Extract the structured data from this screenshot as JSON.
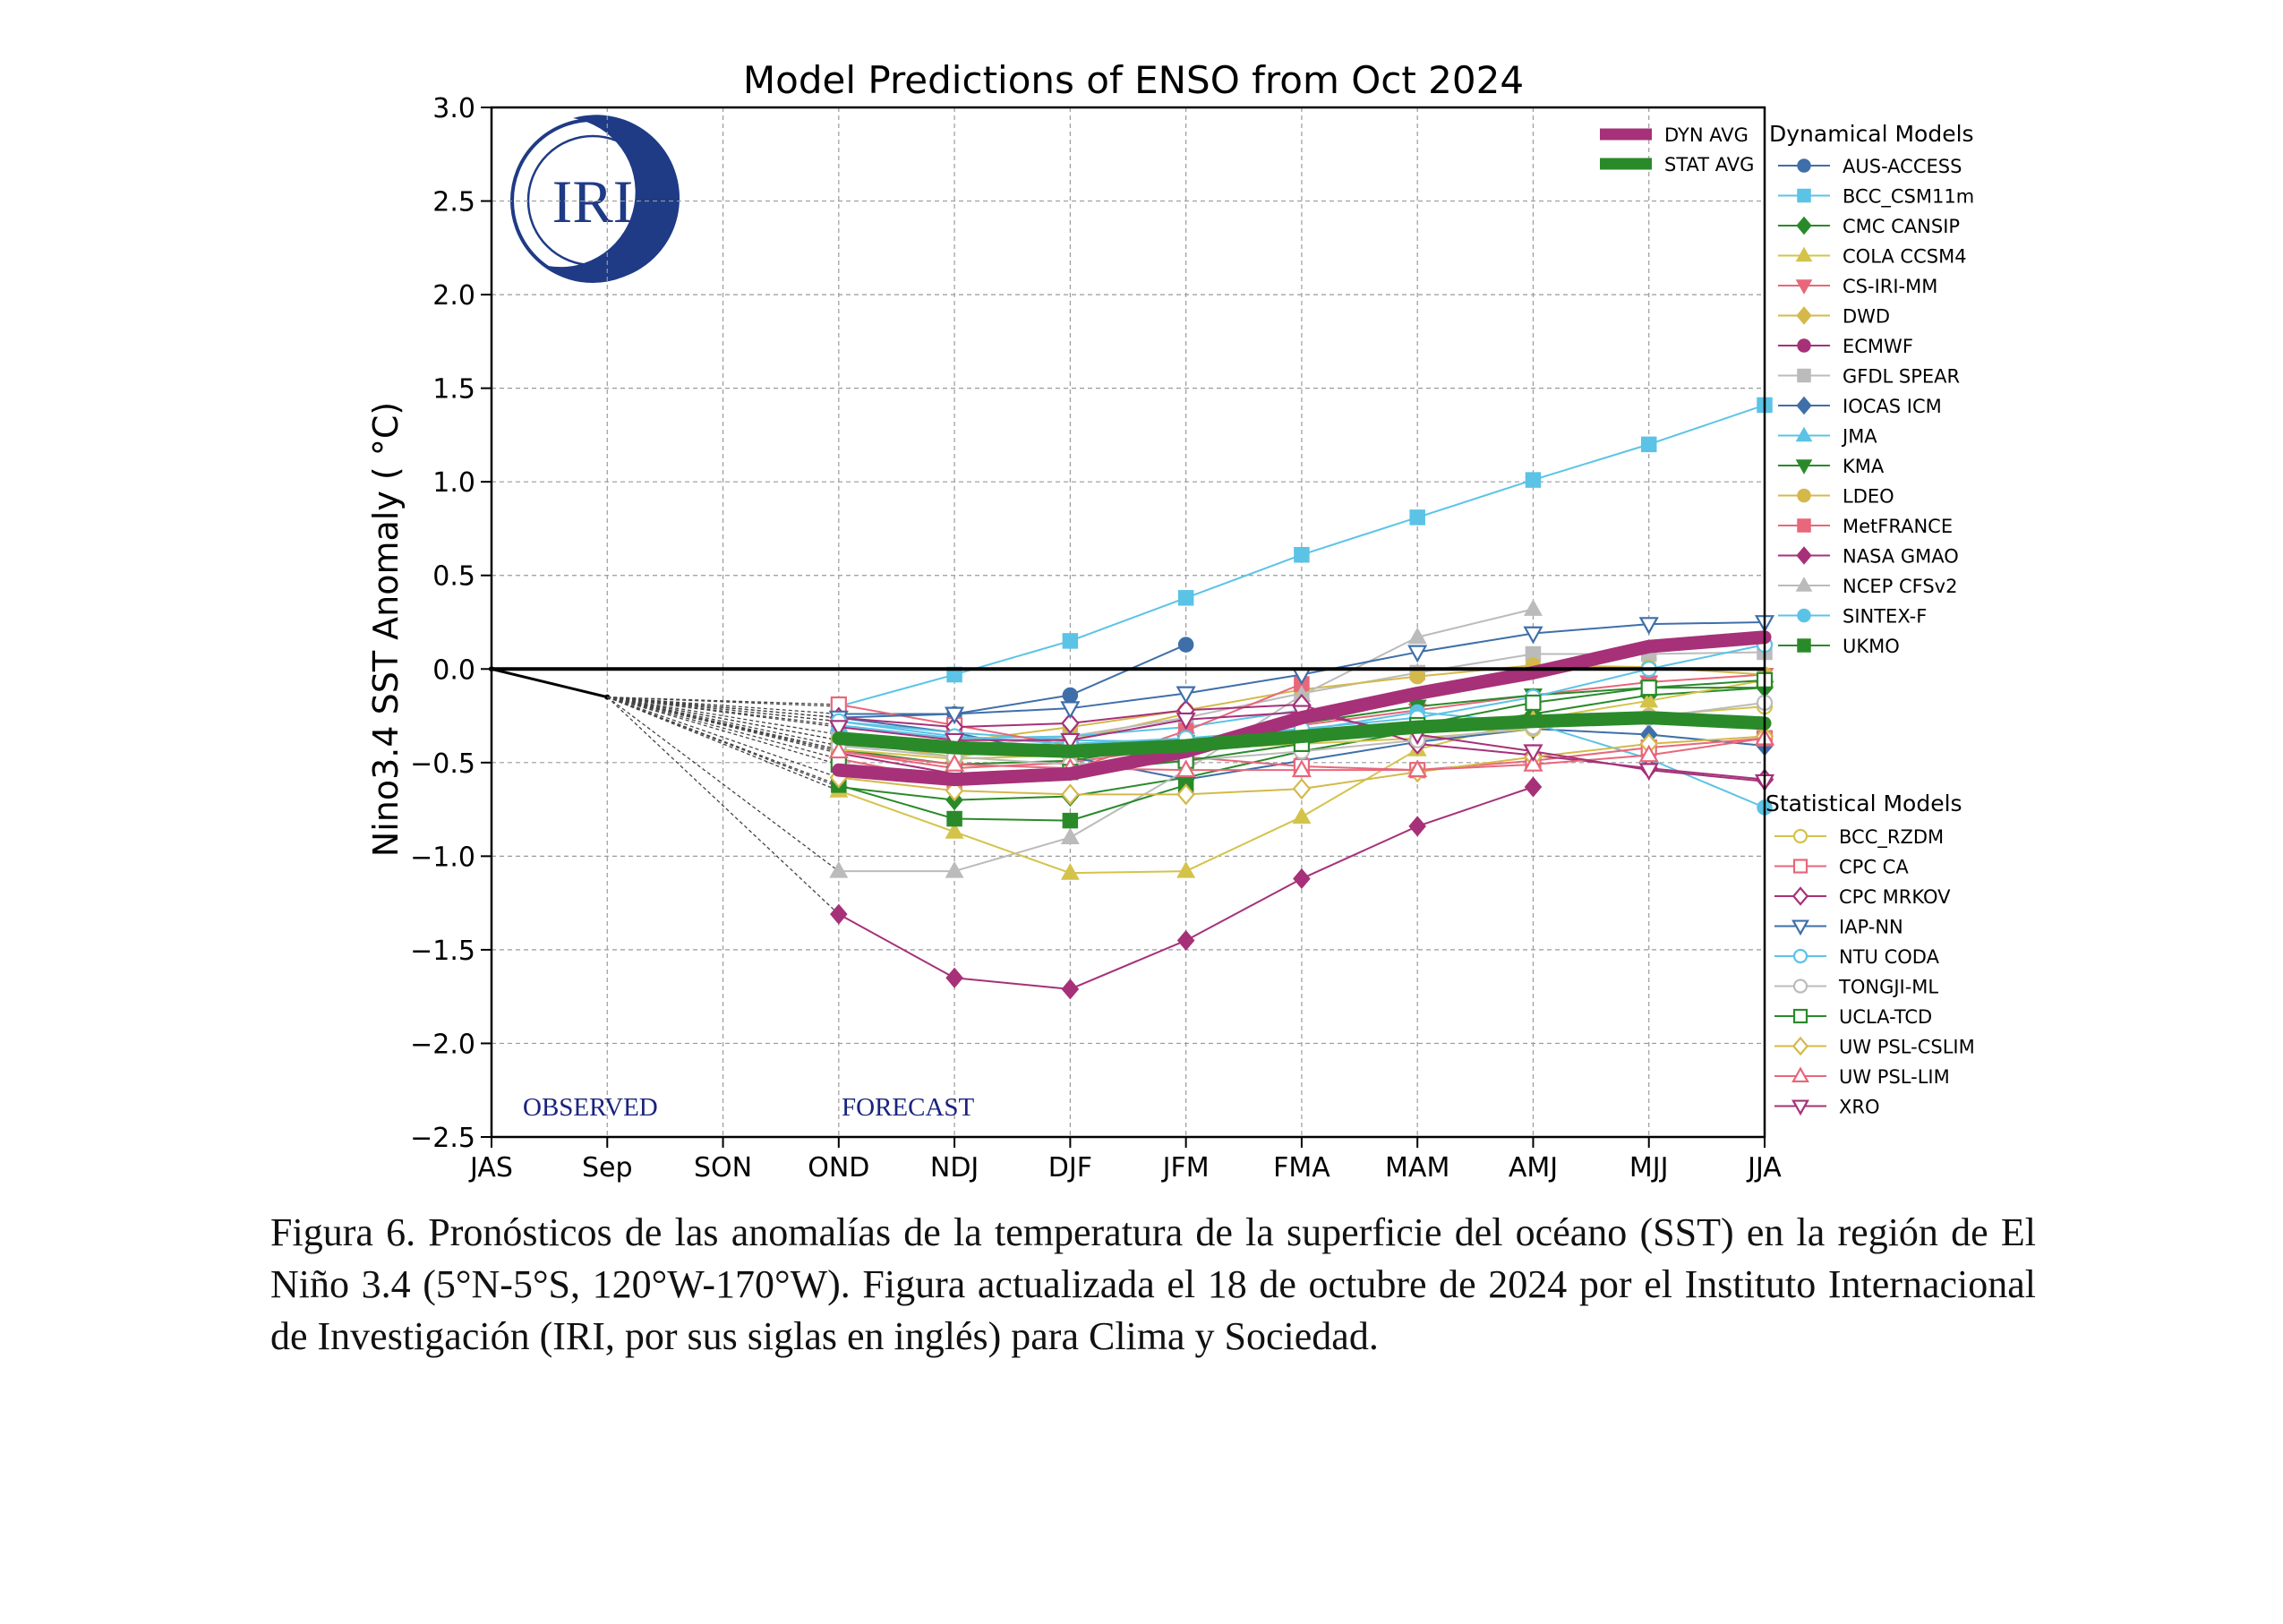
{
  "caption": "Figura 6. Pronósticos de las anomalías de la temperatura de la superficie del océano (SST) en la región de El Niño 3.4 (5°N-5°S, 120°W-170°W). Figura actualizada el 18 de octubre de 2024 por el Instituto Internacional de Investigación (IRI, por sus siglas en inglés) para Clima y Sociedad.",
  "logo_text": "IRI",
  "chart_data": {
    "type": "line",
    "title": "Model Predictions of ENSO from Oct 2024",
    "ylabel": "Nino3.4 SST Anomaly ( °C)",
    "xlabel": "",
    "categories": [
      "JAS",
      "Sep",
      "SON",
      "OND",
      "NDJ",
      "DJF",
      "JFM",
      "FMA",
      "MAM",
      "AMJ",
      "MJJ",
      "JJA"
    ],
    "ylim": [
      -2.5,
      3.0
    ],
    "yticks": [
      3.0,
      2.5,
      2.0,
      1.5,
      1.0,
      0.5,
      0.0,
      -0.5,
      -1.0,
      -1.5,
      -2.0,
      -2.5
    ],
    "ytick_labels": [
      "3.0",
      "2.5",
      "2.0",
      "1.5",
      "1.0",
      "0.5",
      "0.0",
      "−0.5",
      "−1.0",
      "−1.5",
      "−2.0",
      "−2.5"
    ],
    "grid": true,
    "annotations": [
      "OBSERVED",
      "FORECAST"
    ],
    "observed": {
      "JAS": 0.0,
      "Sep": -0.15
    },
    "zero_line": 0.0,
    "legend_groups": [
      {
        "title": "",
        "placement": "top-right inside",
        "keys": [
          "DYN AVG",
          "STAT AVG"
        ]
      },
      {
        "title": "Dynamical Models",
        "placement": "right outside top"
      },
      {
        "title": "Statistical Models",
        "placement": "right outside bottom"
      }
    ],
    "series": [
      {
        "name": "DYN AVG",
        "group": "avg",
        "color": "#a63178",
        "marker": "none",
        "values": [
          null,
          null,
          null,
          -0.54,
          -0.59,
          -0.56,
          -0.44,
          -0.26,
          -0.13,
          -0.02,
          0.12,
          0.17
        ]
      },
      {
        "name": "STAT AVG",
        "group": "avg",
        "color": "#2a8a2a",
        "marker": "none",
        "values": [
          null,
          null,
          null,
          -0.37,
          -0.42,
          -0.44,
          -0.41,
          -0.36,
          -0.31,
          -0.28,
          -0.26,
          -0.29
        ]
      },
      {
        "name": "AUS-ACCESS",
        "group": "Dynamical Models",
        "color": "#3f6fa9",
        "marker": "circle",
        "filled": true,
        "values": [
          null,
          null,
          null,
          -0.24,
          -0.24,
          -0.14,
          0.13,
          null,
          null,
          null,
          null,
          null
        ]
      },
      {
        "name": "BCC_CSM11m",
        "group": "Dynamical Models",
        "color": "#5bc3e6",
        "marker": "square",
        "filled": true,
        "values": [
          null,
          null,
          null,
          -0.2,
          -0.03,
          0.15,
          0.38,
          0.61,
          0.81,
          1.01,
          1.2,
          1.41
        ]
      },
      {
        "name": "CMC CANSIP",
        "group": "Dynamical Models",
        "color": "#2a8a2a",
        "marker": "diamond",
        "filled": true,
        "values": [
          null,
          null,
          null,
          -0.63,
          -0.7,
          -0.68,
          -0.58,
          -0.44,
          -0.33,
          -0.24,
          -0.14,
          -0.1
        ]
      },
      {
        "name": "COLA CCSM4",
        "group": "Dynamical Models",
        "color": "#d4c34a",
        "marker": "triangle-up",
        "filled": true,
        "values": [
          null,
          null,
          null,
          -0.65,
          -0.87,
          -1.09,
          -1.08,
          -0.79,
          -0.43,
          -0.27,
          -0.17,
          -0.06
        ]
      },
      {
        "name": "CS-IRI-MM",
        "group": "Dynamical Models",
        "color": "#e8677a",
        "marker": "triangle-down",
        "filled": true,
        "values": [
          null,
          null,
          null,
          -0.44,
          -0.53,
          -0.5,
          -0.41,
          -0.3,
          -0.22,
          -0.14,
          -0.07,
          -0.03
        ]
      },
      {
        "name": "DWD",
        "group": "Dynamical Models",
        "color": "#d4b94a",
        "marker": "diamond",
        "filled": true,
        "values": [
          null,
          null,
          null,
          -0.38,
          -0.47,
          -0.38,
          -0.24,
          null,
          null,
          null,
          null,
          null
        ]
      },
      {
        "name": "ECMWF",
        "group": "Dynamical Models",
        "color": "#a63178",
        "marker": "circle",
        "filled": true,
        "values": [
          null,
          null,
          null,
          -0.45,
          -0.56,
          -0.53,
          -0.43,
          null,
          null,
          null,
          null,
          null
        ]
      },
      {
        "name": "GFDL SPEAR",
        "group": "Dynamical Models",
        "color": "#bbbbbb",
        "marker": "square",
        "filled": true,
        "values": [
          null,
          null,
          null,
          -0.35,
          -0.42,
          -0.36,
          -0.26,
          -0.13,
          -0.02,
          0.08,
          0.08,
          0.09
        ]
      },
      {
        "name": "IOCAS ICM",
        "group": "Dynamical Models",
        "color": "#3f6fa9",
        "marker": "diamond",
        "filled": true,
        "values": [
          null,
          null,
          null,
          -0.26,
          -0.34,
          -0.47,
          -0.59,
          -0.49,
          -0.39,
          -0.32,
          -0.35,
          -0.41
        ]
      },
      {
        "name": "JMA",
        "group": "Dynamical Models",
        "color": "#5bc3e6",
        "marker": "triangle-up",
        "filled": true,
        "values": [
          null,
          null,
          null,
          -0.3,
          -0.37,
          -0.36,
          -0.31,
          -0.22,
          null,
          null,
          null,
          null
        ]
      },
      {
        "name": "KMA",
        "group": "Dynamical Models",
        "color": "#2a8a2a",
        "marker": "triangle-down",
        "filled": true,
        "values": [
          null,
          null,
          null,
          -0.43,
          -0.51,
          -0.49,
          -0.39,
          -0.29,
          -0.2,
          -0.14,
          -0.1,
          -0.1
        ]
      },
      {
        "name": "LDEO",
        "group": "Dynamical Models",
        "color": "#d4b94a",
        "marker": "circle",
        "filled": true,
        "values": [
          null,
          null,
          null,
          -0.38,
          -0.39,
          -0.31,
          -0.22,
          -0.11,
          -0.04,
          0.02,
          0.01,
          -0.03
        ]
      },
      {
        "name": "MetFRANCE",
        "group": "Dynamical Models",
        "color": "#e8677a",
        "marker": "square",
        "filled": true,
        "values": [
          null,
          null,
          null,
          -0.48,
          -0.6,
          -0.54,
          -0.33,
          -0.08,
          null,
          null,
          null,
          null
        ]
      },
      {
        "name": "NASA GMAO",
        "group": "Dynamical Models",
        "color": "#a63178",
        "marker": "diamond",
        "filled": true,
        "values": [
          null,
          null,
          null,
          -1.31,
          -1.65,
          -1.71,
          -1.45,
          -1.12,
          -0.84,
          -0.63,
          null,
          null
        ]
      },
      {
        "name": "NCEP CFSv2",
        "group": "Dynamical Models",
        "color": "#bbbbbb",
        "marker": "triangle-up",
        "filled": true,
        "values": [
          null,
          null,
          null,
          -1.08,
          -1.08,
          -0.9,
          -0.54,
          -0.14,
          0.17,
          0.32,
          null,
          null
        ]
      },
      {
        "name": "SINTEX-F",
        "group": "Dynamical Models",
        "color": "#5bc3e6",
        "marker": "circle",
        "filled": true,
        "values": [
          null,
          null,
          null,
          -0.28,
          -0.34,
          -0.38,
          -0.39,
          -0.33,
          -0.23,
          -0.29,
          -0.48,
          -0.74
        ]
      },
      {
        "name": "UKMO",
        "group": "Dynamical Models",
        "color": "#2a8a2a",
        "marker": "square",
        "filled": true,
        "values": [
          null,
          null,
          null,
          -0.62,
          -0.8,
          -0.81,
          -0.62,
          null,
          null,
          null,
          null,
          null
        ]
      },
      {
        "name": "BCC_RZDM",
        "group": "Statistical Models",
        "color": "#d4c34a",
        "marker": "circle",
        "filled": false,
        "values": [
          null,
          null,
          null,
          -0.43,
          -0.48,
          -0.46,
          -0.43,
          -0.4,
          -0.37,
          -0.32,
          -0.25,
          -0.2
        ]
      },
      {
        "name": "CPC CA",
        "group": "Statistical Models",
        "color": "#e8677a",
        "marker": "square",
        "filled": false,
        "values": [
          null,
          null,
          null,
          -0.19,
          -0.3,
          -0.41,
          -0.47,
          -0.52,
          -0.54,
          -0.49,
          -0.42,
          -0.37
        ]
      },
      {
        "name": "CPC MRKOV",
        "group": "Statistical Models",
        "color": "#a63178",
        "marker": "diamond",
        "filled": false,
        "values": [
          null,
          null,
          null,
          -0.26,
          -0.31,
          -0.29,
          -0.22,
          -0.19,
          -0.4,
          -0.46,
          -0.53,
          -0.59
        ]
      },
      {
        "name": "IAP-NN",
        "group": "Statistical Models",
        "color": "#3f6fa9",
        "marker": "triangle-down",
        "filled": false,
        "values": [
          null,
          null,
          null,
          -0.26,
          -0.24,
          -0.21,
          -0.13,
          -0.03,
          0.09,
          0.19,
          0.24,
          0.25
        ]
      },
      {
        "name": "NTU CODA",
        "group": "Statistical Models",
        "color": "#5bc3e6",
        "marker": "circle",
        "filled": false,
        "values": [
          null,
          null,
          null,
          -0.28,
          -0.36,
          -0.4,
          -0.37,
          -0.32,
          -0.26,
          -0.15,
          0.0,
          0.13
        ]
      },
      {
        "name": "TONGJI-ML",
        "group": "Statistical Models",
        "color": "#bbbbbb",
        "marker": "circle",
        "filled": false,
        "values": [
          null,
          null,
          null,
          -0.41,
          -0.47,
          -0.51,
          -0.49,
          -0.44,
          -0.38,
          -0.31,
          -0.26,
          -0.18
        ]
      },
      {
        "name": "UCLA-TCD",
        "group": "Statistical Models",
        "color": "#2a8a2a",
        "marker": "square",
        "filled": false,
        "values": [
          null,
          null,
          null,
          -0.51,
          -0.56,
          -0.55,
          -0.49,
          -0.4,
          -0.3,
          -0.18,
          -0.1,
          -0.06
        ]
      },
      {
        "name": "UW PSL-CSLIM",
        "group": "Statistical Models",
        "color": "#d4b94a",
        "marker": "diamond",
        "filled": false,
        "values": [
          null,
          null,
          null,
          -0.58,
          -0.65,
          -0.67,
          -0.67,
          -0.64,
          -0.55,
          -0.47,
          -0.4,
          -0.36
        ]
      },
      {
        "name": "UW PSL-LIM",
        "group": "Statistical Models",
        "color": "#e8677a",
        "marker": "triangle-up",
        "filled": false,
        "values": [
          null,
          null,
          null,
          -0.44,
          -0.51,
          -0.53,
          -0.54,
          -0.54,
          -0.54,
          -0.51,
          -0.46,
          -0.37
        ]
      },
      {
        "name": "XRO",
        "group": "Statistical Models",
        "color": "#a63178",
        "marker": "triangle-down",
        "filled": false,
        "values": [
          null,
          null,
          null,
          -0.31,
          -0.38,
          -0.38,
          -0.27,
          -0.23,
          -0.35,
          -0.44,
          -0.54,
          -0.6
        ]
      }
    ]
  }
}
